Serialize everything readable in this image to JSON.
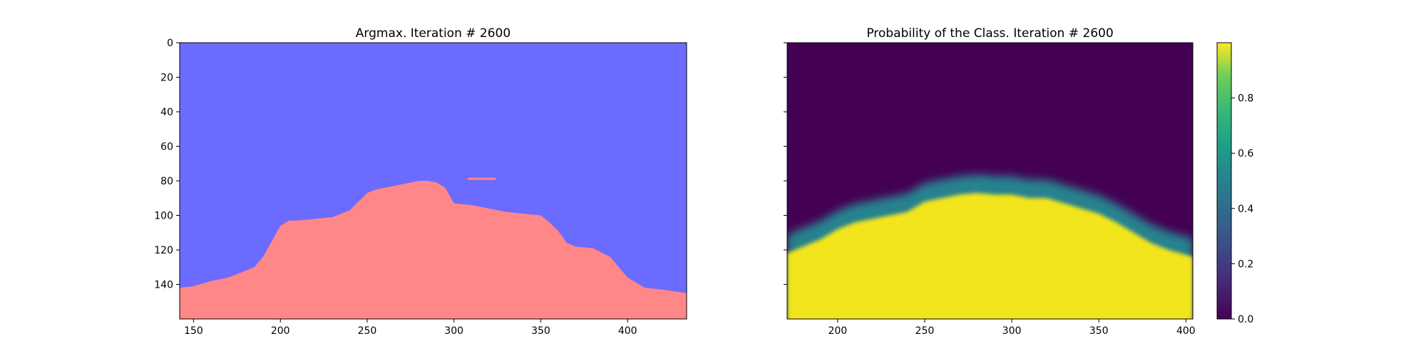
{
  "chart_data": [
    {
      "type": "heatmap",
      "title": "Argmax. Iteration # 2600",
      "xlabel": "",
      "ylabel": "",
      "xlim": [
        142,
        434
      ],
      "ylim": [
        160,
        0
      ],
      "x_ticks": [
        150,
        200,
        250,
        300,
        350,
        400
      ],
      "y_ticks": [
        0,
        20,
        40,
        60,
        80,
        100,
        120,
        140
      ],
      "classes": [
        {
          "value": 0,
          "color": "#6b6bff"
        },
        {
          "value": 1,
          "color": "#ff8787"
        }
      ],
      "boundary_note": "argmax class 1 occupies rows below the boundary curve; class 0 above",
      "boundary": {
        "x": [
          142,
          150,
          160,
          170,
          180,
          185,
          190,
          195,
          200,
          205,
          210,
          220,
          230,
          240,
          245,
          250,
          255,
          260,
          265,
          270,
          275,
          280,
          285,
          290,
          295,
          300,
          310,
          320,
          330,
          340,
          350,
          355,
          360,
          365,
          370,
          380,
          390,
          395,
          400,
          410,
          420,
          434
        ],
        "y": [
          142,
          141,
          138,
          136,
          132,
          130,
          124,
          115,
          106,
          103,
          103,
          102,
          101,
          97,
          92,
          87,
          85,
          84,
          83,
          82,
          81,
          80,
          80,
          81,
          84,
          93,
          94,
          96,
          98,
          99,
          100,
          104,
          109,
          116,
          118,
          119,
          124,
          130,
          136,
          142,
          143,
          145
        ]
      },
      "island": {
        "x": [
          308,
          324
        ],
        "y": 79
      }
    },
    {
      "type": "heatmap",
      "title": "Probability of the Class. Iteration # 2600",
      "xlabel": "",
      "ylabel": "",
      "xlim": [
        171,
        404
      ],
      "ylim": [
        160,
        0
      ],
      "x_ticks": [
        200,
        250,
        300,
        350,
        400
      ],
      "y_ticks": [
        0,
        20,
        40,
        60,
        80,
        100,
        120,
        140
      ],
      "colormap": "viridis",
      "colorbar": {
        "min": 0.0,
        "max": 1.0,
        "ticks": [
          "0.0",
          "0.2",
          "0.4",
          "0.6",
          "0.8"
        ],
        "tick_values": [
          0.0,
          0.2,
          0.4,
          0.6,
          0.8
        ]
      },
      "surface_note": "probability near 0 above the boundary curve, rising through a green band to near 1 below it",
      "boundary": {
        "x": [
          171,
          180,
          190,
          200,
          210,
          220,
          230,
          240,
          250,
          260,
          270,
          280,
          290,
          300,
          310,
          320,
          330,
          340,
          350,
          360,
          370,
          380,
          390,
          404
        ],
        "y": [
          122,
          118,
          114,
          108,
          104,
          102,
          100,
          98,
          92,
          90,
          88,
          87,
          88,
          88,
          90,
          90,
          93,
          96,
          99,
          104,
          110,
          116,
          120,
          124
        ]
      }
    }
  ]
}
